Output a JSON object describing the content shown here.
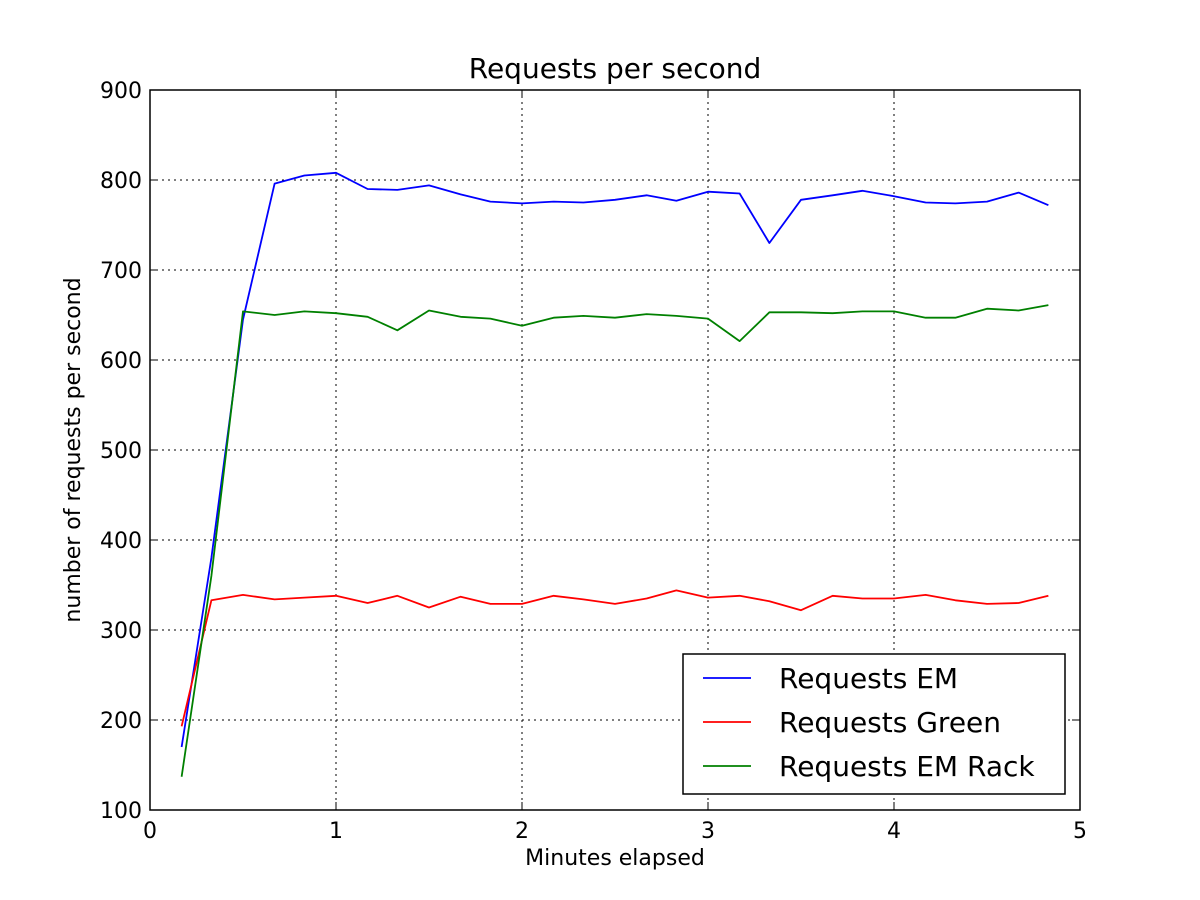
{
  "chart_data": {
    "type": "line",
    "title": "Requests per second",
    "xlabel": "Minutes elapsed",
    "ylabel": "number of requests per second",
    "xlim": [
      0,
      5
    ],
    "ylim": [
      100,
      900
    ],
    "xticks": [
      "0",
      "1",
      "2",
      "3",
      "4",
      "5"
    ],
    "yticks": [
      "100",
      "200",
      "300",
      "400",
      "500",
      "600",
      "700",
      "800",
      "900"
    ],
    "grid": true,
    "legend_position": "lower-right",
    "x": [
      0.17,
      0.33,
      0.5,
      0.67,
      0.83,
      1.0,
      1.17,
      1.33,
      1.5,
      1.67,
      1.83,
      2.0,
      2.17,
      2.33,
      2.5,
      2.67,
      2.83,
      3.0,
      3.17,
      3.33,
      3.5,
      3.67,
      3.83,
      4.0,
      4.17,
      4.33,
      4.5,
      4.67,
      4.83
    ],
    "series": [
      {
        "name": "Requests EM",
        "color": "#0000ff",
        "values": [
          170,
          380,
          645,
          796,
          805,
          808,
          790,
          789,
          794,
          784,
          776,
          774,
          776,
          775,
          778,
          783,
          777,
          787,
          785,
          730,
          778,
          783,
          788,
          782,
          775,
          774,
          776,
          786,
          772
        ]
      },
      {
        "name": "Requests Green",
        "color": "#ff0000",
        "values": [
          193,
          333,
          339,
          334,
          336,
          338,
          330,
          338,
          325,
          337,
          329,
          329,
          338,
          334,
          329,
          335,
          344,
          336,
          338,
          332,
          322,
          338,
          335,
          335,
          339,
          333,
          329,
          330,
          338
        ]
      },
      {
        "name": "Requests EM Rack",
        "color": "#008000",
        "values": [
          137,
          360,
          654,
          650,
          654,
          652,
          648,
          633,
          655,
          648,
          646,
          638,
          647,
          649,
          647,
          651,
          649,
          646,
          621,
          653,
          653,
          652,
          654,
          654,
          647,
          647,
          657,
          655,
          661
        ]
      }
    ]
  }
}
